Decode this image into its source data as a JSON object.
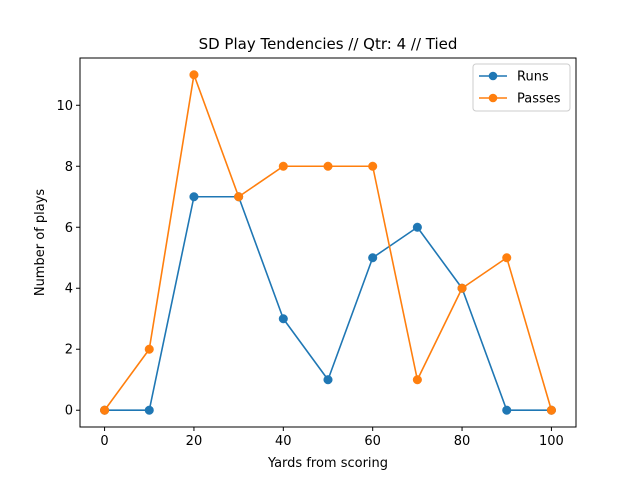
{
  "chart_data": {
    "type": "line",
    "title": "SD Play Tendencies // Qtr: 4 // Tied",
    "xlabel": "Yards from scoring",
    "ylabel": "Number of plays",
    "x": [
      0,
      10,
      20,
      30,
      40,
      50,
      60,
      70,
      80,
      90,
      100
    ],
    "xlim": [
      -5.5,
      105.5
    ],
    "ylim": [
      -0.55,
      11.55
    ],
    "xticks": [
      0,
      20,
      40,
      60,
      80,
      100
    ],
    "yticks": [
      0,
      2,
      4,
      6,
      8,
      10
    ],
    "grid": false,
    "legend_position": "top-right",
    "series": [
      {
        "name": "Runs",
        "color": "#1f77b4",
        "values": [
          0,
          0,
          7,
          7,
          3,
          1,
          5,
          6,
          4,
          0,
          0
        ]
      },
      {
        "name": "Passes",
        "color": "#ff7f0e",
        "values": [
          0,
          2,
          11,
          7,
          8,
          8,
          8,
          1,
          4,
          5,
          0
        ]
      }
    ]
  }
}
